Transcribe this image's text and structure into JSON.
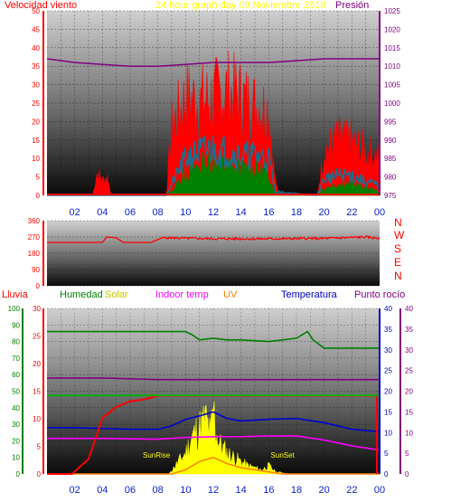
{
  "chart_data": [
    {
      "type": "line",
      "title": "24 hour graph day   09 Noviembre 2018",
      "left_axis_label": "Velocidad viento",
      "right_axis_label": "Presión",
      "left_ticks": [
        "50",
        "45",
        "40",
        "35",
        "30",
        "25",
        "20",
        "15",
        "10",
        "5",
        "0"
      ],
      "right_ticks": [
        "1025",
        "1020",
        "1015",
        "1010",
        "1005",
        "1000",
        "995",
        "990",
        "985",
        "980",
        "975"
      ],
      "ylim_left": [
        0,
        50
      ],
      "ylim_right": [
        975,
        1025
      ],
      "x_ticks": [
        "02",
        "04",
        "06",
        "08",
        "10",
        "12",
        "14",
        "16",
        "18",
        "20",
        "22",
        "00"
      ],
      "xlim_hours": [
        0,
        24
      ],
      "grid": true,
      "series": [
        {
          "name": "Presión",
          "color": "#800080",
          "x": [
            0,
            2,
            4,
            6,
            8,
            10,
            12,
            14,
            16,
            18,
            20,
            22,
            24
          ],
          "values": [
            1012,
            1011,
            1010.5,
            1010,
            1010,
            1010.5,
            1011,
            1011,
            1011,
            1011.5,
            1012,
            1012,
            1012
          ]
        },
        {
          "color": "#ff0000",
          "x": [
            0,
            3.3,
            3.6,
            4.0,
            4.4,
            4.6,
            8.6,
            9.0,
            10.0,
            11.0,
            12.0,
            13.0,
            14.0,
            15.0,
            16.0,
            16.4,
            16.7,
            19.5,
            20,
            21,
            22,
            23,
            24
          ],
          "values": [
            0,
            0,
            6,
            4,
            5,
            0,
            0,
            18,
            26,
            25,
            26,
            28,
            26,
            24,
            23,
            6,
            0,
            0,
            12,
            15,
            14,
            12,
            10
          ]
        },
        {
          "color": "#1e6e8c",
          "x": [
            0,
            8.6,
            9.2,
            10,
            11,
            12,
            13,
            14,
            15,
            16,
            16.5,
            19.5,
            20,
            21,
            22,
            23,
            24
          ],
          "values": [
            0,
            0,
            5,
            11,
            13,
            14,
            13,
            12,
            12,
            11,
            1,
            0,
            5,
            6,
            6,
            4,
            3
          ]
        },
        {
          "color": "#008000",
          "x": [
            0,
            8.6,
            9.2,
            10,
            11,
            12,
            13,
            14,
            15,
            16,
            16.5,
            19.5,
            20,
            21,
            22,
            23,
            24
          ],
          "values": [
            0,
            0,
            2,
            6,
            8,
            9,
            8,
            7,
            7,
            6,
            0,
            0,
            2,
            3,
            3,
            2,
            1
          ]
        }
      ]
    },
    {
      "type": "line",
      "ylabel_compass": [
        "N",
        "W",
        "S",
        "E",
        "N"
      ],
      "left_ticks": [
        "360",
        "270",
        "180",
        "90",
        "0"
      ],
      "ylim": [
        0,
        360
      ],
      "series": [
        {
          "color": "#ff0000",
          "x": [
            0,
            4.0,
            4.3,
            5.0,
            5.5,
            6.3,
            7.5,
            8.3,
            9,
            12,
            16,
            20,
            23,
            24
          ],
          "values": [
            240,
            240,
            270,
            265,
            240,
            240,
            240,
            265,
            265,
            260,
            260,
            262,
            270,
            262
          ]
        }
      ]
    },
    {
      "type": "line",
      "legend": [
        "Lluvia",
        "Humedad",
        "Solar",
        "Indoor temp",
        "UV",
        "Temperatura",
        "Punto rocío"
      ],
      "left_ticks_rain": [
        "100",
        "90",
        "80",
        "70",
        "60",
        "50",
        "40",
        "30",
        "20",
        "10",
        "0"
      ],
      "left_ticks_temp": [
        "30",
        "25",
        "20",
        "15",
        "10",
        "5",
        "0"
      ],
      "right_ticks": [
        "40",
        "35",
        "30",
        "25",
        "20",
        "15",
        "10",
        "5",
        "0"
      ],
      "x_ticks": [
        "02",
        "04",
        "06",
        "08",
        "10",
        "12",
        "14",
        "16",
        "18",
        "20",
        "22",
        "00"
      ],
      "annotations": [
        "SunRise",
        "SunSet"
      ],
      "ylim_humidity": [
        0,
        100
      ],
      "ylim_temp": [
        0,
        40
      ],
      "series": [
        {
          "name": "Humedad",
          "color": "#008000",
          "x": [
            0,
            5,
            8,
            10,
            10.5,
            11,
            12,
            13,
            14,
            16,
            17,
            18,
            18.8,
            19.2,
            20,
            24
          ],
          "values": [
            86,
            86,
            86,
            86,
            84,
            81,
            82,
            81,
            81,
            80,
            81,
            82,
            86,
            81,
            76,
            76
          ]
        },
        {
          "name": "Punto rocío",
          "color": "#800080",
          "x": [
            0,
            4,
            8,
            12,
            16,
            20,
            24
          ],
          "values": [
            58,
            58,
            57,
            57,
            57,
            57,
            57
          ]
        },
        {
          "name": "Lluvia",
          "color": "#ff0000",
          "x": [
            0,
            1.8,
            3,
            4,
            5,
            6,
            7,
            7.5,
            8,
            24
          ],
          "values": [
            0,
            0,
            8,
            30,
            36,
            39,
            40,
            41,
            42,
            42
          ]
        },
        {
          "name": "Temperatura",
          "color": "#0000d0",
          "x": [
            0,
            2,
            4,
            6,
            8,
            9,
            10,
            11,
            12,
            13,
            14,
            16,
            18,
            20,
            22,
            24
          ],
          "values": [
            11.2,
            11.2,
            11,
            10.8,
            10.8,
            11.6,
            13.2,
            14,
            15,
            13.4,
            12.8,
            13.2,
            13.4,
            12.4,
            10.8,
            10.2
          ]
        },
        {
          "name": "Indoor temp",
          "color": "#ff00ff",
          "x": [
            0,
            4,
            8,
            10,
            12,
            14,
            16,
            18,
            20,
            22,
            24
          ],
          "values": [
            8.6,
            8.6,
            8.4,
            8.8,
            9,
            9,
            9.2,
            9.2,
            8.2,
            6.8,
            5.8
          ]
        },
        {
          "name": "Solar",
          "color": "#ffff00",
          "x": [
            0,
            8.8,
            9.5,
            10,
            10.5,
            11,
            11.5,
            11.8,
            12,
            12.2,
            12.5,
            13,
            13.5,
            14,
            14.5,
            15,
            15.5,
            16,
            16.5,
            17,
            17.5,
            24
          ],
          "values": [
            0,
            0,
            3,
            5,
            9,
            11,
            13,
            9,
            16,
            10,
            7,
            5,
            4,
            3,
            2,
            1.5,
            1,
            2,
            0.5,
            0.3,
            0,
            0
          ]
        },
        {
          "name": "UV",
          "color": "#ff8000",
          "x": [
            0,
            9,
            10,
            11,
            12,
            13,
            14,
            15,
            16,
            17,
            24
          ],
          "values": [
            0,
            0,
            1,
            3,
            4,
            2.5,
            1.5,
            1,
            0.5,
            0,
            0
          ]
        }
      ]
    }
  ]
}
